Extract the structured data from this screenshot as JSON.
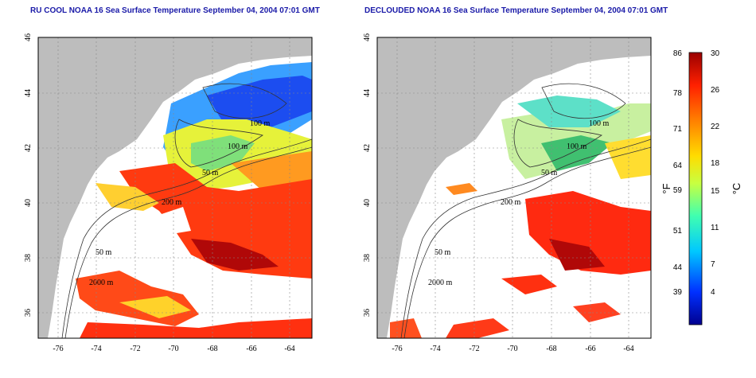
{
  "panels": [
    {
      "title": "RU COOL NOAA 16 Sea Surface Temperature September 04, 2004 07:01 GMT",
      "contour_labels": [
        "100 m",
        "100 m",
        "50 m",
        "200 m",
        "50 m",
        "2000 m"
      ]
    },
    {
      "title": "DECLOUDED NOAA 16 Sea Surface Temperature September 04, 2004 07:01 GMT",
      "contour_labels": [
        "100 m",
        "100 m",
        "50 m",
        "200 m",
        "50 m",
        "2000 m"
      ]
    }
  ],
  "axes": {
    "lon_ticks": [
      "-76",
      "-74",
      "-72",
      "-70",
      "-68",
      "-66",
      "-64"
    ],
    "lat_ticks": [
      "46",
      "44",
      "42",
      "40",
      "38",
      "36"
    ]
  },
  "colorbar": {
    "fahrenheit_ticks": [
      "86",
      "78",
      "71",
      "64",
      "59",
      "51",
      "44",
      "39"
    ],
    "celsius_ticks": [
      "30",
      "26",
      "22",
      "18",
      "15",
      "11",
      "7",
      "4"
    ],
    "unit_f": "°F",
    "unit_c": "°C",
    "colors": [
      "#00008f",
      "#0030ff",
      "#00c8ff",
      "#40ffb0",
      "#c8ff40",
      "#ffdc00",
      "#ff8000",
      "#ff2000",
      "#9a0000"
    ]
  }
}
